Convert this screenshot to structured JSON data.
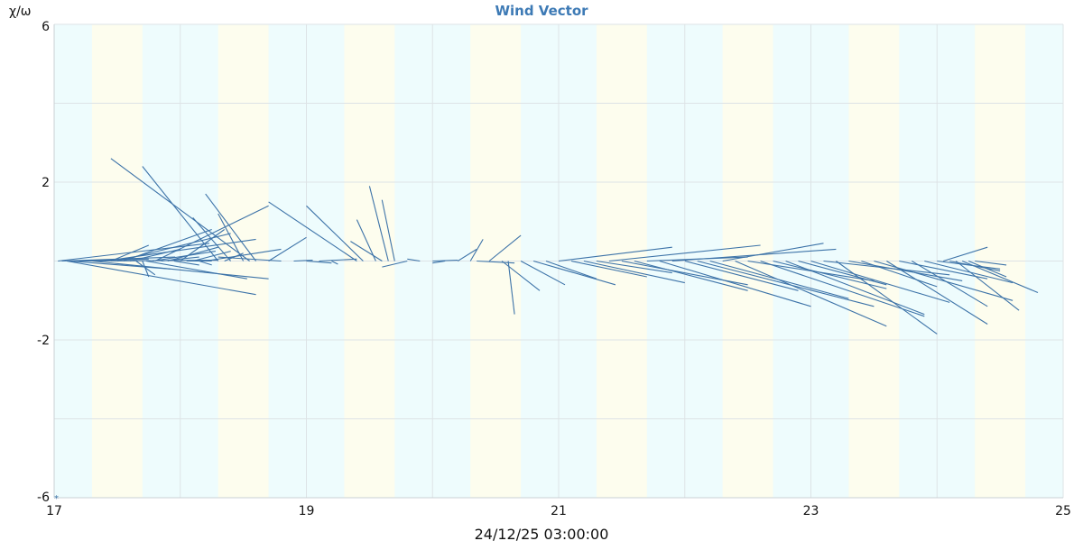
{
  "colors": {
    "vector": "#3d73a8",
    "title": "#3d7ab5",
    "grid": "#dde3e6",
    "band_day": "#eefcfd",
    "band_night": "#fdfdee"
  },
  "chart_data": {
    "type": "vector",
    "title": "Wind Vector",
    "ylabel": "χ/ω",
    "xlabel": "24/12/25 03:00:00",
    "xlim": [
      17,
      25
    ],
    "ylim": [
      -6,
      6
    ],
    "x_ticks": [
      "17",
      "19",
      "21",
      "23",
      "25"
    ],
    "y_ticks": [
      "6",
      "2",
      "-2",
      "-6"
    ],
    "marker_label": "*",
    "grid": true,
    "background_bands": [
      {
        "from": 17.3,
        "to": 17.7,
        "kind": "night"
      },
      {
        "from": 18.3,
        "to": 18.7,
        "kind": "night"
      },
      {
        "from": 19.3,
        "to": 19.7,
        "kind": "night"
      },
      {
        "from": 20.3,
        "to": 20.7,
        "kind": "night"
      },
      {
        "from": 21.3,
        "to": 21.7,
        "kind": "night"
      },
      {
        "from": 22.3,
        "to": 22.7,
        "kind": "night"
      },
      {
        "from": 23.3,
        "to": 23.7,
        "kind": "night"
      },
      {
        "from": 24.3,
        "to": 24.7,
        "kind": "night"
      }
    ],
    "vectors": [
      {
        "x": 17.03,
        "u": 1.2,
        "v": 0.45
      },
      {
        "x": 17.06,
        "u": 0.9,
        "v": 0.1
      },
      {
        "x": 17.1,
        "u": 1.5,
        "v": -0.85
      },
      {
        "x": 17.12,
        "u": 0.8,
        "v": -0.2
      },
      {
        "x": 17.15,
        "u": 0.6,
        "v": 0.05
      },
      {
        "x": 17.2,
        "u": 1.1,
        "v": 0.02
      },
      {
        "x": 17.3,
        "u": 1.4,
        "v": -0.45
      },
      {
        "x": 17.4,
        "u": 1.2,
        "v": 0.55
      },
      {
        "x": 17.45,
        "u": 0.3,
        "v": 0.4
      },
      {
        "x": 17.5,
        "u": 0.9,
        "v": 0.7
      },
      {
        "x": 17.55,
        "u": 0.7,
        "v": 0.8
      },
      {
        "x": 17.6,
        "u": 0.4,
        "v": 0.3
      },
      {
        "x": 17.65,
        "u": 0.15,
        "v": -0.35
      },
      {
        "x": 17.7,
        "u": 0.05,
        "v": -0.4
      },
      {
        "x": 17.73,
        "u": 0.8,
        "v": -0.45
      },
      {
        "x": 17.78,
        "u": 0.5,
        "v": 0.25
      },
      {
        "x": 17.8,
        "u": 0.9,
        "v": 1.4
      },
      {
        "x": 17.85,
        "u": 0.3,
        "v": 0.1
      },
      {
        "x": 17.9,
        "u": 0.4,
        "v": 0.35
      },
      {
        "x": 17.95,
        "u": 0.2,
        "v": -0.1
      },
      {
        "x": 18.0,
        "u": 0.35,
        "v": 0.8
      },
      {
        "x": 18.05,
        "u": 0.2,
        "v": 0.0
      },
      {
        "x": 18.1,
        "u": 0.3,
        "v": 0.25
      },
      {
        "x": 18.15,
        "u": 0.1,
        "v": -0.1
      },
      {
        "x": 18.2,
        "u": 0.6,
        "v": 0.3
      },
      {
        "x": 18.3,
        "u": -0.6,
        "v": 2.4
      },
      {
        "x": 18.35,
        "u": 0.15,
        "v": 0.2
      },
      {
        "x": 18.4,
        "u": -0.3,
        "v": 1.1
      },
      {
        "x": 18.5,
        "u": -0.2,
        "v": 1.2
      },
      {
        "x": 18.55,
        "u": -1.1,
        "v": 2.6
      },
      {
        "x": 18.6,
        "u": -0.4,
        "v": 1.7
      },
      {
        "x": 18.7,
        "u": 0.3,
        "v": 0.6
      },
      {
        "x": 18.8,
        "u": -0.5,
        "v": 0.1
      },
      {
        "x": 18.9,
        "u": 0.15,
        "v": 0.02
      },
      {
        "x": 19.0,
        "u": 0.2,
        "v": -0.05
      },
      {
        "x": 19.1,
        "u": 0.3,
        "v": 0.05
      },
      {
        "x": 19.2,
        "u": 0.05,
        "v": -0.08
      },
      {
        "x": 19.4,
        "u": -0.7,
        "v": 1.5
      },
      {
        "x": 19.45,
        "u": -0.45,
        "v": 1.4
      },
      {
        "x": 19.55,
        "u": -0.15,
        "v": 1.05
      },
      {
        "x": 19.6,
        "u": -0.25,
        "v": 0.5
      },
      {
        "x": 19.65,
        "u": -0.15,
        "v": 1.9
      },
      {
        "x": 19.7,
        "u": -0.1,
        "v": 1.55
      },
      {
        "x": 19.8,
        "u": -0.2,
        "v": -0.15
      },
      {
        "x": 19.9,
        "u": -0.1,
        "v": 0.05
      },
      {
        "x": 20.0,
        "u": 0.2,
        "v": 0.02
      },
      {
        "x": 20.1,
        "u": -0.1,
        "v": -0.05
      },
      {
        "x": 20.2,
        "u": 0.15,
        "v": 0.3
      },
      {
        "x": 20.3,
        "u": 0.1,
        "v": 0.55
      },
      {
        "x": 20.35,
        "u": 0.3,
        "v": -0.05
      },
      {
        "x": 20.45,
        "u": 0.25,
        "v": 0.65
      },
      {
        "x": 20.55,
        "u": 0.3,
        "v": -0.75
      },
      {
        "x": 20.6,
        "u": 0.05,
        "v": -1.35
      },
      {
        "x": 20.7,
        "u": 0.35,
        "v": -0.6
      },
      {
        "x": 20.8,
        "u": 0.65,
        "v": -0.6
      },
      {
        "x": 20.9,
        "u": 0.4,
        "v": -0.45
      },
      {
        "x": 21.0,
        "u": 0.9,
        "v": 0.35
      },
      {
        "x": 21.1,
        "u": 0.6,
        "v": -0.4
      },
      {
        "x": 21.2,
        "u": 0.8,
        "v": -0.55
      },
      {
        "x": 21.3,
        "u": 0.6,
        "v": -0.3
      },
      {
        "x": 21.4,
        "u": 1.2,
        "v": 0.4
      },
      {
        "x": 21.5,
        "u": 1.0,
        "v": -0.6
      },
      {
        "x": 21.6,
        "u": 0.9,
        "v": -0.75
      },
      {
        "x": 21.7,
        "u": 0.8,
        "v": 0.1
      },
      {
        "x": 21.8,
        "u": 1.2,
        "v": -1.15
      },
      {
        "x": 21.9,
        "u": 1.3,
        "v": 0.3
      },
      {
        "x": 22.0,
        "u": 0.9,
        "v": -0.75
      },
      {
        "x": 22.1,
        "u": 1.4,
        "v": -1.15
      },
      {
        "x": 22.2,
        "u": 1.1,
        "v": -0.95
      },
      {
        "x": 22.3,
        "u": 0.8,
        "v": 0.45
      },
      {
        "x": 22.4,
        "u": 1.2,
        "v": -1.65
      },
      {
        "x": 22.5,
        "u": 1.0,
        "v": -0.5
      },
      {
        "x": 22.6,
        "u": 1.3,
        "v": -1.4
      },
      {
        "x": 22.7,
        "u": 0.9,
        "v": -0.7
      },
      {
        "x": 22.8,
        "u": 1.1,
        "v": -1.35
      },
      {
        "x": 22.9,
        "u": 0.7,
        "v": -0.6
      },
      {
        "x": 23.0,
        "u": 1.1,
        "v": -1.05
      },
      {
        "x": 23.1,
        "u": 1.0,
        "v": -0.35
      },
      {
        "x": 23.2,
        "u": 0.8,
        "v": -1.85
      },
      {
        "x": 23.3,
        "u": 0.9,
        "v": -0.5
      },
      {
        "x": 23.4,
        "u": 0.6,
        "v": -0.65
      },
      {
        "x": 23.5,
        "u": 1.1,
        "v": -1.0
      },
      {
        "x": 23.6,
        "u": 0.8,
        "v": -1.6
      },
      {
        "x": 23.7,
        "u": 0.7,
        "v": -0.45
      },
      {
        "x": 23.8,
        "u": 0.6,
        "v": -1.15
      },
      {
        "x": 23.9,
        "u": 0.7,
        "v": -0.55
      },
      {
        "x": 24.0,
        "u": 0.5,
        "v": -0.2
      },
      {
        "x": 24.05,
        "u": 0.35,
        "v": 0.35
      },
      {
        "x": 24.1,
        "u": 0.4,
        "v": -0.25
      },
      {
        "x": 24.15,
        "u": 0.5,
        "v": -1.25
      },
      {
        "x": 24.2,
        "u": 0.6,
        "v": -0.8
      },
      {
        "x": 24.25,
        "u": 0.3,
        "v": -0.4
      },
      {
        "x": 24.3,
        "u": 0.25,
        "v": -0.1
      }
    ]
  }
}
